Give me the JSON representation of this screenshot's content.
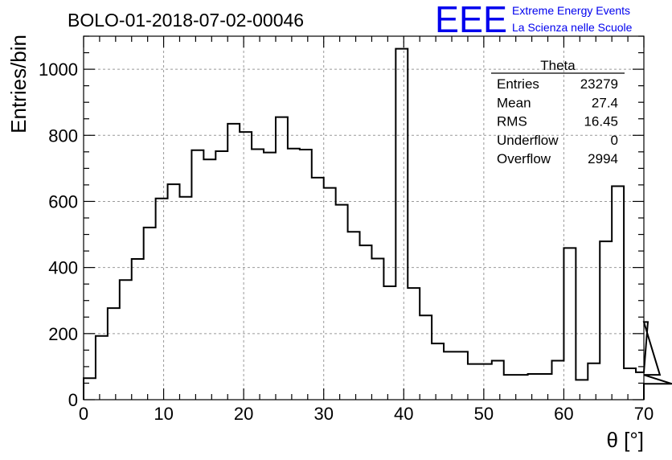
{
  "header": {
    "run_title": "BOLO-01-2018-07-02-00046",
    "logo_letters": "EEE",
    "logo_line1": "Extreme Energy Events",
    "logo_line2": "La Scienza nelle Scuole"
  },
  "colors": {
    "logo": "#0000ee",
    "line": "#000000",
    "grid": "#999999"
  },
  "stats": {
    "name": "Theta",
    "rows": [
      {
        "label": "Entries",
        "value": "23279"
      },
      {
        "label": "Mean",
        "value": "27.4"
      },
      {
        "label": "RMS",
        "value": "16.45"
      },
      {
        "label": "Underflow",
        "value": "0"
      },
      {
        "label": "Overflow",
        "value": "2994"
      }
    ]
  },
  "chart_data": {
    "type": "histogram",
    "title": "BOLO-01-2018-07-02-00046",
    "xlabel": "θ [°]",
    "ylabel": "Entries/bin",
    "xlim": [
      0,
      70
    ],
    "ylim": [
      0,
      1100
    ],
    "grid": true,
    "bin_width": 1.5,
    "x_ticks": [
      0,
      10,
      20,
      30,
      40,
      50,
      60,
      70
    ],
    "y_ticks": [
      0,
      200,
      400,
      600,
      800,
      1000
    ],
    "values": [
      65,
      193,
      277,
      362,
      426,
      521,
      609,
      652,
      614,
      755,
      727,
      752,
      835,
      810,
      758,
      748,
      855,
      760,
      757,
      672,
      641,
      590,
      508,
      467,
      427,
      343,
      1062,
      338,
      255,
      170,
      145,
      145,
      108,
      108,
      118,
      75,
      75,
      78,
      78,
      118,
      459,
      60,
      110,
      479,
      646,
      95,
      83,
      235,
      75,
      48
    ]
  }
}
